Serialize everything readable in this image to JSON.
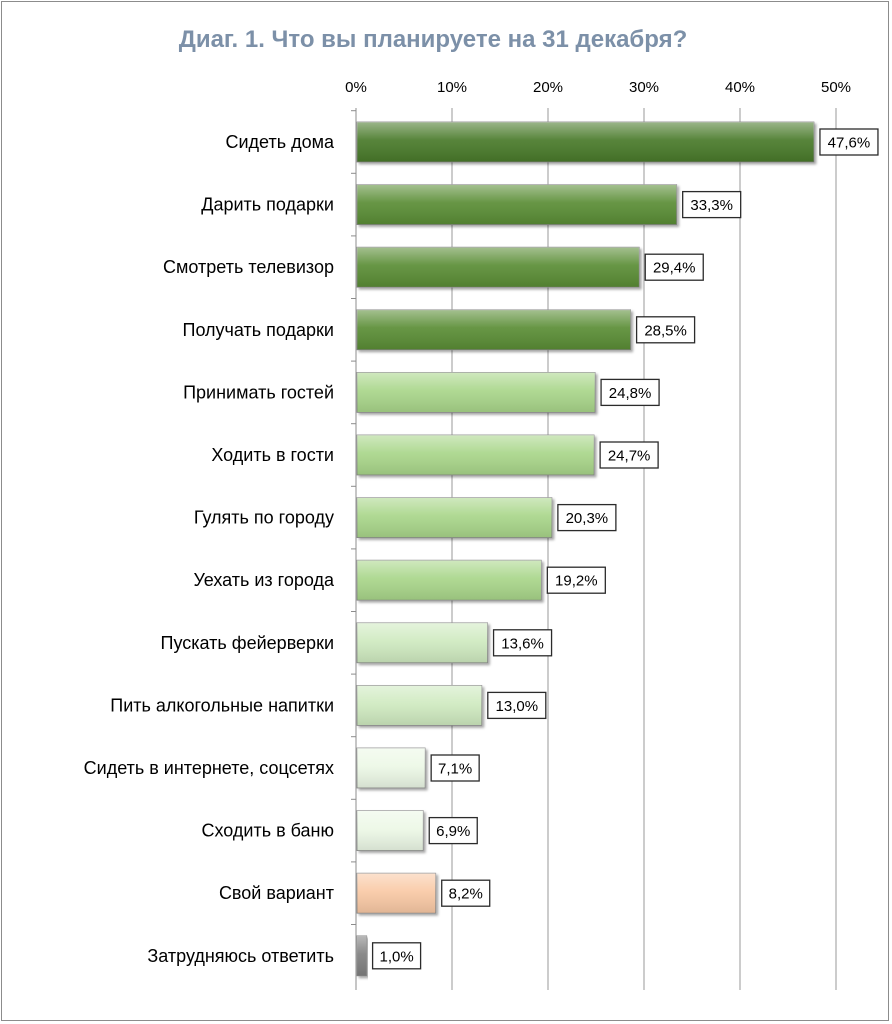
{
  "chart_data": {
    "type": "bar",
    "orientation": "horizontal",
    "title": "Диаг. 1. Что вы планируете на 31 декабря?",
    "xlim": [
      0,
      50
    ],
    "tick_labels": [
      "0%",
      "10%",
      "20%",
      "30%",
      "40%",
      "50%"
    ],
    "grid": true,
    "categories": [
      "Сидеть дома",
      "Дарить подарки",
      "Смотреть телевизор",
      "Получать подарки",
      "Принимать гостей",
      "Ходить в гости",
      "Гулять по городу",
      "Уехать из города",
      "Пускать фейерверки",
      "Пить алкогольные напитки",
      "Сидеть в интернете, соцсетях",
      "Сходить в баню",
      "Свой вариант",
      "Затрудняюсь ответить"
    ],
    "values": [
      47.6,
      33.3,
      29.4,
      28.5,
      24.8,
      24.7,
      20.3,
      19.2,
      13.6,
      13.0,
      7.1,
      6.9,
      8.2,
      1.0
    ],
    "value_labels": [
      "47,6%",
      "33,3%",
      "29,4%",
      "28,5%",
      "24,8%",
      "24,7%",
      "20,3%",
      "19,2%",
      "13,6%",
      "13,0%",
      "7,1%",
      "6,9%",
      "8,2%",
      "1,0%"
    ],
    "bar_colors": [
      "#4a7a2a",
      "#5a8d35",
      "#5a8d35",
      "#5a8d35",
      "#a9d68a",
      "#a9d68a",
      "#a9d68a",
      "#a9d68a",
      "#cfeac0",
      "#cfeac0",
      "#ecf8e6",
      "#ecf8e6",
      "#f9c9a5",
      "#808080"
    ]
  }
}
